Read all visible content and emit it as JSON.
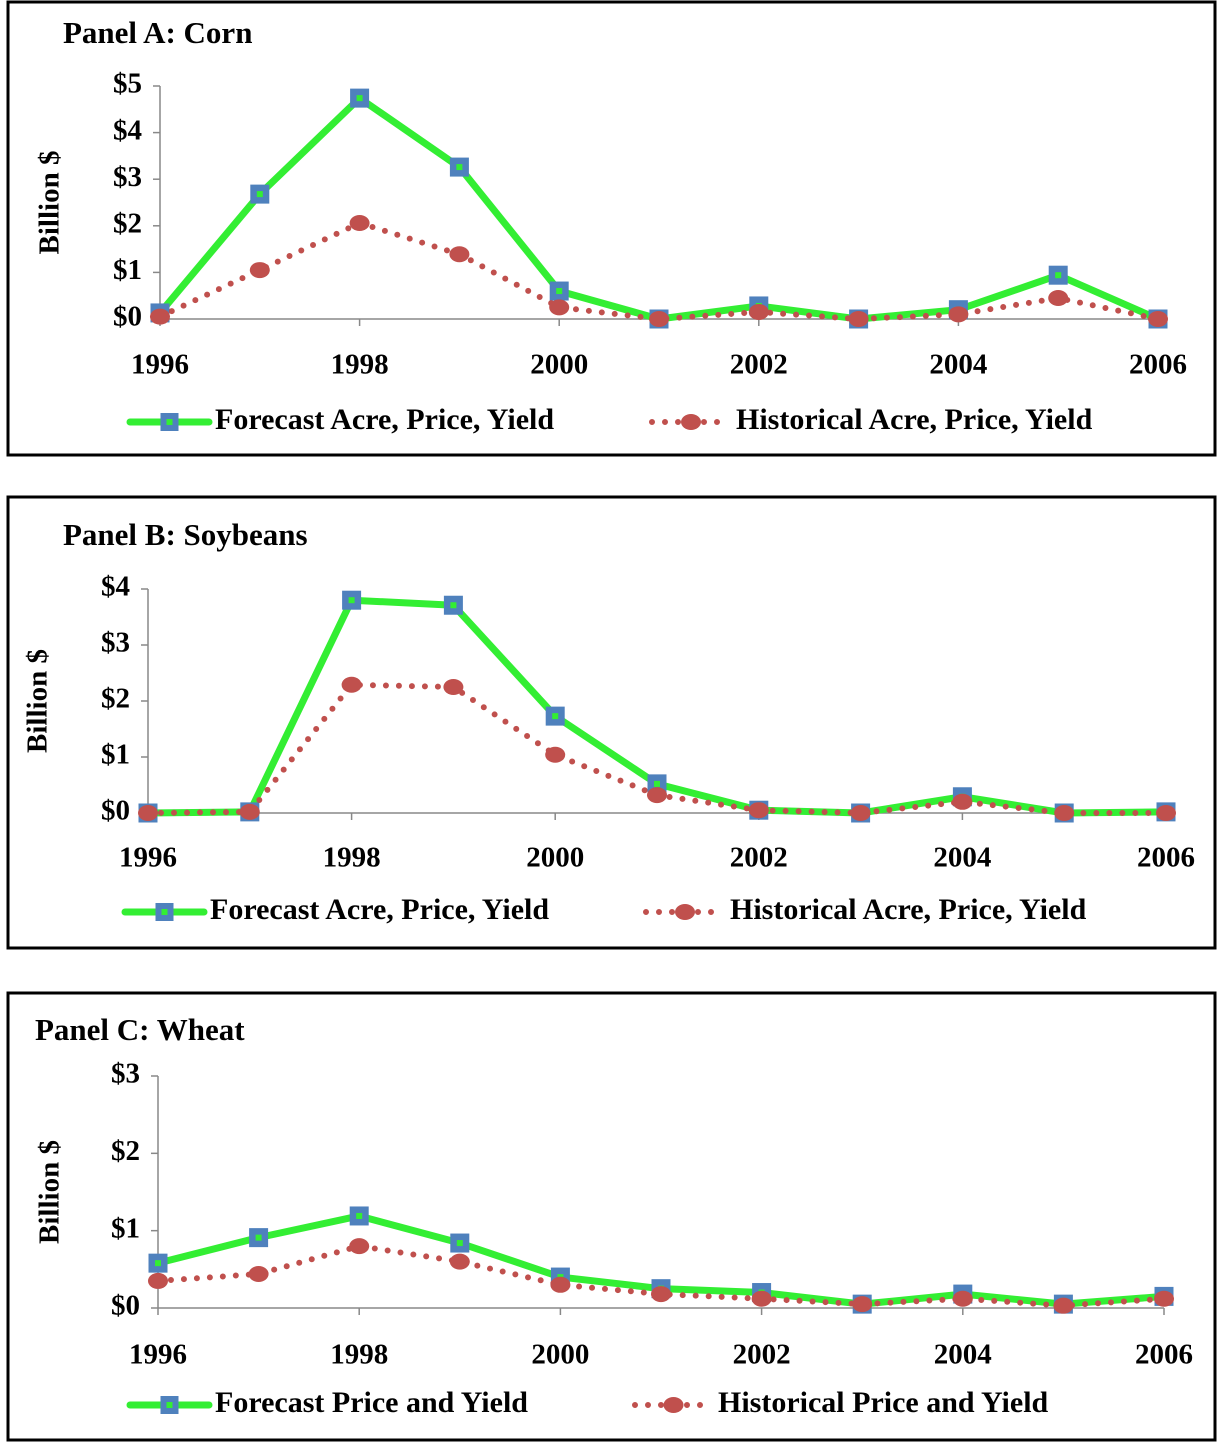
{
  "chart_data": [
    {
      "type": "line",
      "title": "Panel A:  Corn",
      "y_label": "Billion $",
      "x": [
        1996,
        1997,
        1998,
        1999,
        2000,
        2001,
        2002,
        2003,
        2004,
        2005,
        2006
      ],
      "xlim": [
        1996,
        2006
      ],
      "xticks": [
        1996,
        1998,
        2000,
        2002,
        2004,
        2006
      ],
      "ylim": [
        0,
        5
      ],
      "yticks": [
        {
          "value": 0,
          "label": "$0"
        },
        {
          "value": 1,
          "label": "$1"
        },
        {
          "value": 2,
          "label": "$2"
        },
        {
          "value": 3,
          "label": "$3"
        },
        {
          "value": 4,
          "label": "$4"
        },
        {
          "value": 5,
          "label": "$5"
        }
      ],
      "grid": false,
      "legend": "bottom",
      "series": [
        {
          "name": "Forecast Acre, Price, Yield",
          "color": "#33ee33",
          "marker_color": "#4f81bd",
          "style": "solid",
          "values": [
            0.13,
            2.68,
            4.74,
            3.26,
            0.6,
            0,
            0.28,
            0,
            0.2,
            0.94,
            0
          ]
        },
        {
          "name": "Historical Acre, Price, Yield",
          "color": "#c0504d",
          "style": "dotted",
          "values": [
            0.05,
            1.05,
            2.06,
            1.39,
            0.25,
            0,
            0.15,
            0,
            0.1,
            0.45,
            0
          ]
        }
      ]
    },
    {
      "type": "line",
      "title": "Panel B: Soybeans",
      "y_label": "Billion $",
      "x": [
        1996,
        1997,
        1998,
        1999,
        2000,
        2001,
        2002,
        2003,
        2004,
        2005,
        2006
      ],
      "xlim": [
        1996,
        2006
      ],
      "xticks": [
        1996,
        1998,
        2000,
        2002,
        2004,
        2006
      ],
      "ylim": [
        0,
        4
      ],
      "yticks": [
        {
          "value": 0,
          "label": "$0"
        },
        {
          "value": 1,
          "label": "$1"
        },
        {
          "value": 2,
          "label": "$2"
        },
        {
          "value": 3,
          "label": "$3"
        },
        {
          "value": 4,
          "label": "$4"
        }
      ],
      "grid": false,
      "legend": "bottom",
      "series": [
        {
          "name": "Forecast Acre, Price, Yield",
          "color": "#33ee33",
          "marker_color": "#4f81bd",
          "style": "solid",
          "values": [
            0,
            0.02,
            3.8,
            3.71,
            1.73,
            0.52,
            0.05,
            0,
            0.29,
            0,
            0.02
          ]
        },
        {
          "name": "Historical Acre, Price, Yield",
          "color": "#c0504d",
          "style": "dotted",
          "values": [
            0,
            0.02,
            2.29,
            2.25,
            1.04,
            0.32,
            0.05,
            0,
            0.2,
            0,
            0
          ]
        }
      ]
    },
    {
      "type": "line",
      "title": "Panel C:  Wheat",
      "y_label": "Billion $",
      "x": [
        1996,
        1997,
        1998,
        1999,
        2000,
        2001,
        2002,
        2003,
        2004,
        2005,
        2006
      ],
      "xlim": [
        1996,
        2006
      ],
      "xticks": [
        1996,
        1998,
        2000,
        2002,
        2004,
        2006
      ],
      "ylim": [
        0,
        3
      ],
      "yticks": [
        {
          "value": 0,
          "label": "$0"
        },
        {
          "value": 1,
          "label": "$1"
        },
        {
          "value": 2,
          "label": "$2"
        },
        {
          "value": 3,
          "label": "$3"
        }
      ],
      "grid": false,
      "legend": "bottom",
      "series": [
        {
          "name": "Forecast Price and Yield",
          "color": "#33ee33",
          "marker_color": "#4f81bd",
          "style": "solid",
          "values": [
            0.58,
            0.91,
            1.19,
            0.84,
            0.4,
            0.25,
            0.2,
            0.05,
            0.18,
            0.05,
            0.15
          ]
        },
        {
          "name": "Historical Price and Yield",
          "color": "#c0504d",
          "style": "dotted",
          "values": [
            0.35,
            0.44,
            0.8,
            0.6,
            0.3,
            0.18,
            0.12,
            0.05,
            0.12,
            0.03,
            0.12
          ]
        }
      ]
    }
  ]
}
